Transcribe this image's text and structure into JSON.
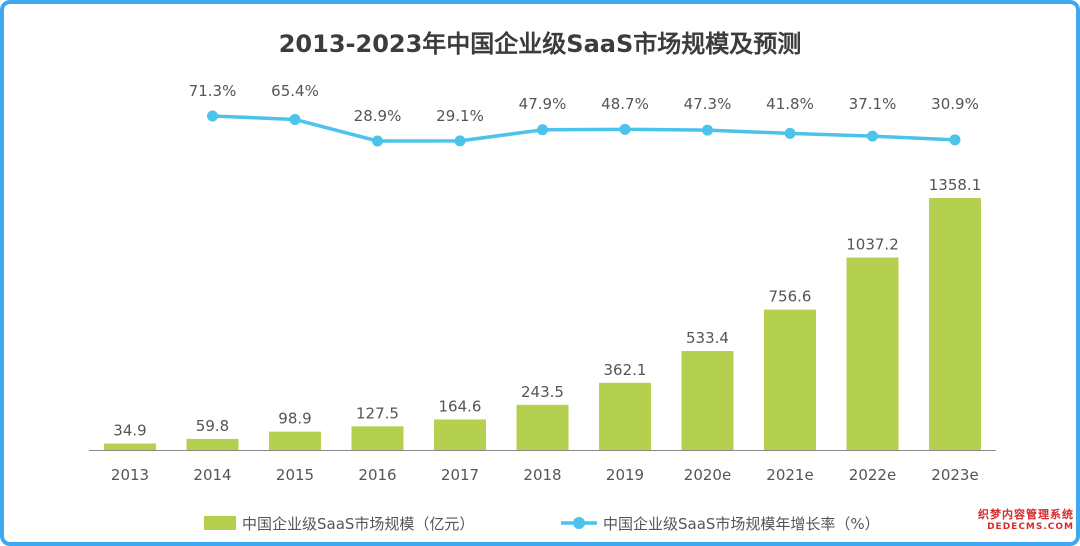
{
  "chart_data": {
    "type": "bar",
    "title": "2013-2023年中国企业级SaaS市场规模及预测",
    "categories": [
      "2013",
      "2014",
      "2015",
      "2016",
      "2017",
      "2018",
      "2019",
      "2020e",
      "2021e",
      "2022e",
      "2023e"
    ],
    "series": [
      {
        "name": "中国企业级SaaS市场规模（亿元）",
        "type": "bar",
        "values": [
          34.9,
          59.8,
          98.9,
          127.5,
          164.6,
          243.5,
          362.1,
          533.4,
          756.6,
          1037.2,
          1358.1
        ],
        "labels": [
          "34.9",
          "59.8",
          "98.9",
          "127.5",
          "164.6",
          "243.5",
          "362.1",
          "533.4",
          "756.6",
          "1037.2",
          "1358.1"
        ]
      },
      {
        "name": "中国企业级SaaS市场规模年增长率（%）",
        "type": "line",
        "values": [
          null,
          71.3,
          65.4,
          28.9,
          29.1,
          47.9,
          48.7,
          47.3,
          41.8,
          37.1,
          30.9
        ],
        "labels": [
          null,
          "71.3%",
          "65.4%",
          "28.9%",
          "29.1%",
          "47.9%",
          "48.7%",
          "47.3%",
          "41.8%",
          "37.1%",
          "30.9%"
        ]
      }
    ],
    "ylim": [
      0,
      1358.1
    ],
    "legend_position": "bottom",
    "grid": false
  },
  "colors": {
    "bar": "#b5cf4f",
    "line": "#4cc3ea",
    "text": "#555555",
    "axis": "#8a8a8a",
    "frame": "#3ea9f2"
  },
  "watermark": {
    "line1": "织梦内容管理系统",
    "line2": "DEDECMS.COM"
  }
}
